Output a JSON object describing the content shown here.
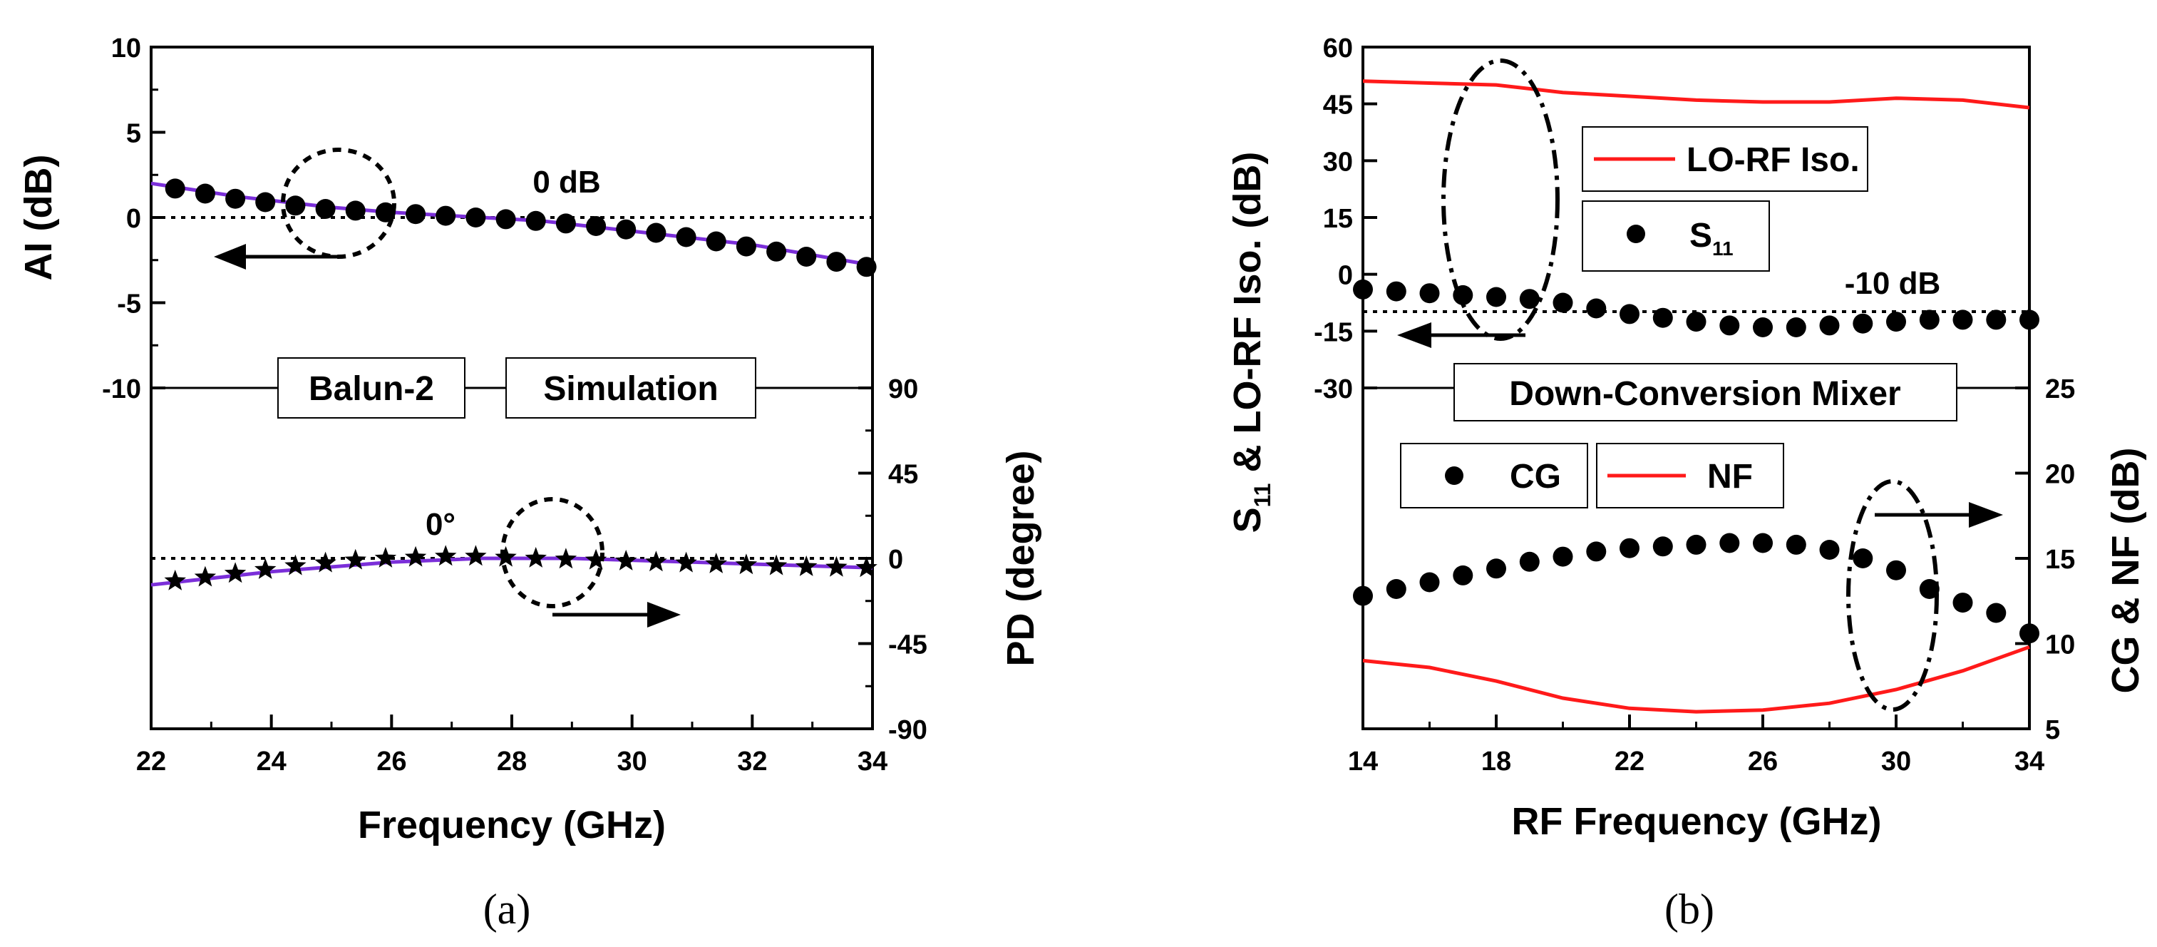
{
  "chart_data": [
    {
      "type": "line",
      "panel_label": "(a)",
      "xlabel": "Frequency (GHz)",
      "x_range": [
        22,
        34
      ],
      "x_ticks": [
        "22",
        "24",
        "26",
        "28",
        "30",
        "32",
        "34"
      ],
      "ylabel_left": "AI (dB)",
      "left_ticks": [
        "10",
        "5",
        "0",
        "-5",
        "-10"
      ],
      "ylabel_right": "PD (degree)",
      "right_ticks": [
        "90",
        "45",
        "0",
        "-45",
        "-90"
      ],
      "boxes": [
        "Balun-2",
        "Simulation"
      ],
      "annotations": [
        "0 dB",
        "0°"
      ],
      "ai": {
        "ylim": [
          -10,
          10
        ],
        "x": [
          22.4,
          22.9,
          23.4,
          23.9,
          24.4,
          24.9,
          25.4,
          25.9,
          26.4,
          26.9,
          27.4,
          27.9,
          28.4,
          28.9,
          29.4,
          29.9,
          30.4,
          30.9,
          31.4,
          31.9,
          32.4,
          32.9,
          33.4,
          33.9
        ],
        "measured": [
          1.7,
          1.4,
          1.1,
          0.9,
          0.7,
          0.5,
          0.4,
          0.3,
          0.2,
          0.1,
          0.0,
          -0.1,
          -0.2,
          -0.35,
          -0.5,
          -0.7,
          -0.9,
          -1.15,
          -1.4,
          -1.7,
          -2.0,
          -2.3,
          -2.6,
          -2.9
        ],
        "simulation": [
          2.0,
          1.2,
          0.6,
          0.3,
          0.1,
          -0.2,
          -0.8,
          -1.6,
          -2.8
        ],
        "simulation_x": [
          22,
          23.5,
          25,
          26,
          27,
          28.5,
          30,
          32,
          34
        ]
      },
      "pd": {
        "ylim": [
          -90,
          90
        ],
        "x": [
          22.4,
          22.9,
          23.4,
          23.9,
          24.4,
          24.9,
          25.4,
          25.9,
          26.4,
          26.9,
          27.4,
          27.9,
          28.4,
          28.9,
          29.4,
          29.9,
          30.4,
          30.9,
          31.4,
          31.9,
          32.4,
          32.9,
          33.4,
          33.9
        ],
        "measured": [
          -12,
          -10,
          -8,
          -6,
          -4,
          -2.5,
          -1,
          0,
          0.5,
          1,
          1,
          0.5,
          0,
          -0.5,
          -1,
          -1.5,
          -2,
          -2.5,
          -3,
          -3.5,
          -4,
          -4.5,
          -4.8,
          -5
        ],
        "simulation": [
          -14,
          -7,
          -2,
          0,
          0,
          -2,
          -4,
          -5
        ],
        "simulation_x": [
          22,
          24,
          26,
          27.5,
          29,
          31,
          33,
          34
        ]
      }
    },
    {
      "type": "line",
      "panel_label": "(b)",
      "xlabel": "RF Frequency (GHz)",
      "x_range": [
        14,
        34
      ],
      "x_ticks": [
        "14",
        "18",
        "22",
        "26",
        "30",
        "34"
      ],
      "ylabel_left": "S11 & LO-RF Iso. (dB)",
      "left_ticks": [
        "60",
        "45",
        "30",
        "15",
        "0",
        "-15",
        "-30"
      ],
      "ylabel_right": "CG & NF (dB)",
      "right_ticks": [
        "25",
        "20",
        "15",
        "10",
        "5"
      ],
      "boxes": [
        "Down-Conversion Mixer"
      ],
      "legend_labels": [
        "LO-RF Iso.",
        "S",
        "11",
        "CG",
        "NF"
      ],
      "annotations": [
        "-10 dB"
      ],
      "upper": {
        "ylim": [
          -30,
          60
        ],
        "iso_x": [
          14,
          16,
          18,
          20,
          22,
          24,
          26,
          28,
          30,
          32,
          34
        ],
        "iso": [
          51,
          50.5,
          50,
          48,
          47,
          46,
          45.5,
          45.5,
          46.5,
          46,
          44
        ],
        "s11_x": [
          14,
          15,
          16,
          17,
          18,
          19,
          20,
          21,
          22,
          23,
          24,
          25,
          26,
          27,
          28,
          29,
          30,
          31,
          32,
          33,
          34
        ],
        "s11": [
          -4,
          -4.5,
          -5,
          -5.5,
          -6,
          -6.5,
          -7.5,
          -9,
          -10.5,
          -11.5,
          -12.5,
          -13.5,
          -14,
          -14,
          -13.5,
          -13,
          -12.5,
          -12,
          -12,
          -12,
          -12
        ]
      },
      "lower": {
        "ylim": [
          5,
          25
        ],
        "cg_x": [
          14,
          15,
          16,
          17,
          18,
          19,
          20,
          21,
          22,
          23,
          24,
          25,
          26,
          27,
          28,
          29,
          30,
          31,
          32,
          33,
          34
        ],
        "cg": [
          12.8,
          13.2,
          13.6,
          14.0,
          14.4,
          14.8,
          15.1,
          15.4,
          15.6,
          15.7,
          15.8,
          15.9,
          15.9,
          15.8,
          15.5,
          15.0,
          14.3,
          13.2,
          12.4,
          11.8,
          10.6
        ],
        "nf_x": [
          14,
          16,
          18,
          20,
          22,
          24,
          26,
          28,
          30,
          32,
          34
        ],
        "nf": [
          9,
          8.6,
          7.8,
          6.8,
          6.2,
          6.0,
          6.1,
          6.5,
          7.3,
          8.4,
          9.8
        ]
      }
    }
  ]
}
